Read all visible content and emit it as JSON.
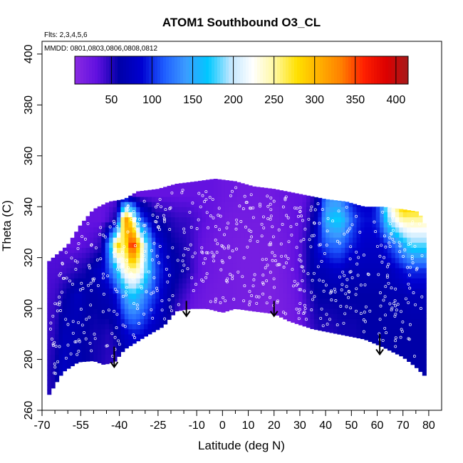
{
  "chart_data": {
    "type": "heatmap",
    "title": "ATOM1 Southbound O3_CL",
    "flights_label": "Flts: 2,3,4,5,6",
    "dates_label": "MMDD: 0801,0803,0806,0808,0812",
    "xlabel": "Latitude (deg N)",
    "ylabel": "Theta (C)",
    "xlim": [
      -70,
      85
    ],
    "ylim": [
      260,
      405
    ],
    "x_major_ticks": [
      -70,
      -55,
      -40,
      -25,
      -10,
      0,
      10,
      20,
      30,
      40,
      50,
      60,
      70,
      80
    ],
    "x_tick_labels": [
      "-70",
      "-55",
      "-40",
      "-25",
      "-10",
      "0",
      "10",
      "20",
      "30",
      "40",
      "50",
      "60",
      "70",
      "80"
    ],
    "x_minor_ticks": [
      -65,
      -60,
      -50,
      -45,
      -35,
      -30,
      -20,
      -15,
      -5,
      5,
      15,
      25,
      35,
      45,
      55,
      65,
      75
    ],
    "y_ticks": [
      260,
      280,
      300,
      320,
      340,
      360,
      380,
      400
    ],
    "y_tick_labels": [
      "260",
      "280",
      "300",
      "320",
      "340",
      "360",
      "380",
      "400"
    ],
    "colorbar": {
      "range": [
        5,
        415
      ],
      "ticks": [
        50,
        100,
        150,
        200,
        250,
        300,
        350,
        400
      ],
      "tick_labels": [
        "50",
        "100",
        "150",
        "200",
        "250",
        "300",
        "350",
        "400"
      ],
      "colors": [
        "#8a2be2",
        "#6010e0",
        "#0000a8",
        "#0000d0",
        "#1e5cff",
        "#3c9cff",
        "#00c8ff",
        "#bfe6ff",
        "#ffffff",
        "#fff8a0",
        "#ffe000",
        "#ffb000",
        "#ff7f00",
        "#ff2000",
        "#dd0000",
        "#a51a1a"
      ]
    },
    "lower_boundary": [
      [
        -68,
        265
      ],
      [
        -62,
        275
      ],
      [
        -56,
        279
      ],
      [
        -50,
        279.5
      ],
      [
        -46,
        278
      ],
      [
        -42,
        279
      ],
      [
        -38,
        284
      ],
      [
        -30,
        289
      ],
      [
        -23,
        293
      ],
      [
        -18,
        299
      ],
      [
        -12,
        300
      ],
      [
        -6,
        300
      ],
      [
        0,
        298.5
      ],
      [
        5,
        300
      ],
      [
        12,
        299
      ],
      [
        20,
        298
      ],
      [
        26,
        295
      ],
      [
        35,
        292
      ],
      [
        45,
        290
      ],
      [
        55,
        288
      ],
      [
        62,
        285
      ],
      [
        70,
        281
      ],
      [
        75,
        277
      ],
      [
        79,
        273
      ]
    ],
    "upper_boundary": [
      [
        -68,
        318
      ],
      [
        -60,
        325
      ],
      [
        -55,
        333
      ],
      [
        -50,
        339
      ],
      [
        -44,
        342
      ],
      [
        -38,
        343
      ],
      [
        -33,
        346
      ],
      [
        -25,
        347
      ],
      [
        -18,
        349
      ],
      [
        -10,
        350
      ],
      [
        -3,
        351
      ],
      [
        5,
        350
      ],
      [
        12,
        348
      ],
      [
        20,
        347
      ],
      [
        30,
        345
      ],
      [
        40,
        343
      ],
      [
        48,
        342
      ],
      [
        55,
        340
      ],
      [
        62,
        340
      ],
      [
        70,
        339
      ],
      [
        76,
        338
      ],
      [
        79,
        332
      ]
    ],
    "field": [
      [
        50,
        45,
        40,
        38,
        35,
        32,
        30
      ],
      [
        55,
        48,
        42,
        38,
        35,
        32,
        30
      ],
      [
        80,
        70,
        55,
        40,
        35,
        32,
        30
      ],
      [
        70,
        70,
        65,
        45,
        30,
        28,
        27
      ],
      [
        65,
        65,
        75,
        50,
        32,
        28,
        27
      ],
      [
        60,
        60,
        65,
        55,
        35,
        30,
        28
      ],
      [
        55,
        55,
        60,
        70,
        40,
        30,
        28
      ],
      [
        50,
        55,
        65,
        80,
        50,
        30,
        28
      ],
      [
        45,
        50,
        70,
        110,
        140,
        40,
        30
      ],
      [
        45,
        60,
        90,
        160,
        290,
        60,
        30
      ],
      [
        50,
        80,
        140,
        230,
        250,
        330,
        30
      ],
      [
        60,
        90,
        170,
        250,
        380,
        260,
        30
      ],
      [
        60,
        90,
        150,
        230,
        270,
        120,
        30
      ],
      [
        55,
        80,
        120,
        170,
        170,
        90,
        30
      ],
      [
        50,
        70,
        100,
        110,
        100,
        60,
        30
      ],
      [
        45,
        60,
        80,
        90,
        80,
        55,
        30
      ],
      [
        40,
        50,
        60,
        70,
        60,
        50,
        30
      ],
      [
        30,
        30,
        50,
        60,
        55,
        45,
        30
      ],
      [
        25,
        25,
        40,
        55,
        50,
        45,
        30
      ],
      [
        20,
        20,
        30,
        40,
        40,
        40,
        30
      ],
      [
        18,
        20,
        25,
        30,
        30,
        35,
        30
      ],
      [
        15,
        18,
        22,
        25,
        25,
        30,
        30
      ],
      [
        15,
        18,
        20,
        22,
        22,
        25,
        28
      ],
      [
        15,
        18,
        20,
        20,
        20,
        22,
        25
      ],
      [
        15,
        18,
        20,
        20,
        20,
        20,
        25
      ],
      [
        15,
        18,
        18,
        18,
        18,
        20,
        22
      ],
      [
        15,
        15,
        18,
        18,
        18,
        20,
        22
      ],
      [
        15,
        15,
        18,
        18,
        18,
        20,
        22
      ],
      [
        15,
        15,
        15,
        18,
        18,
        20,
        22
      ],
      [
        15,
        15,
        15,
        15,
        18,
        20,
        22
      ],
      [
        15,
        15,
        18,
        18,
        20,
        22,
        25
      ],
      [
        18,
        20,
        20,
        22,
        22,
        25,
        28
      ],
      [
        20,
        20,
        25,
        30,
        30,
        30,
        30
      ],
      [
        25,
        30,
        35,
        40,
        40,
        35,
        30
      ],
      [
        30,
        40,
        50,
        60,
        60,
        50,
        40
      ],
      [
        40,
        50,
        60,
        70,
        90,
        80,
        60
      ],
      [
        40,
        50,
        60,
        70,
        110,
        150,
        120
      ],
      [
        45,
        50,
        60,
        80,
        120,
        170,
        130
      ],
      [
        50,
        55,
        60,
        80,
        120,
        170,
        120
      ],
      [
        50,
        55,
        60,
        70,
        100,
        130,
        90
      ],
      [
        55,
        55,
        60,
        70,
        90,
        100,
        80
      ],
      [
        55,
        60,
        60,
        70,
        80,
        90,
        80
      ],
      [
        60,
        60,
        60,
        70,
        80,
        90,
        80
      ],
      [
        60,
        60,
        60,
        70,
        80,
        110,
        120
      ],
      [
        60,
        60,
        65,
        70,
        100,
        180,
        230
      ],
      [
        60,
        60,
        65,
        80,
        120,
        220,
        280
      ],
      [
        60,
        60,
        65,
        90,
        150,
        250,
        350
      ],
      [
        60,
        60,
        70,
        100,
        180,
        250,
        330
      ]
    ],
    "field_x_start": -68,
    "field_x_step": 3,
    "field_theta_levels": [
      275,
      290,
      305,
      315,
      325,
      335,
      345
    ],
    "arrows": [
      [
        -42,
        285,
        277
      ],
      [
        -14,
        303,
        297
      ],
      [
        20,
        303,
        297
      ],
      [
        61,
        290,
        282
      ]
    ]
  }
}
